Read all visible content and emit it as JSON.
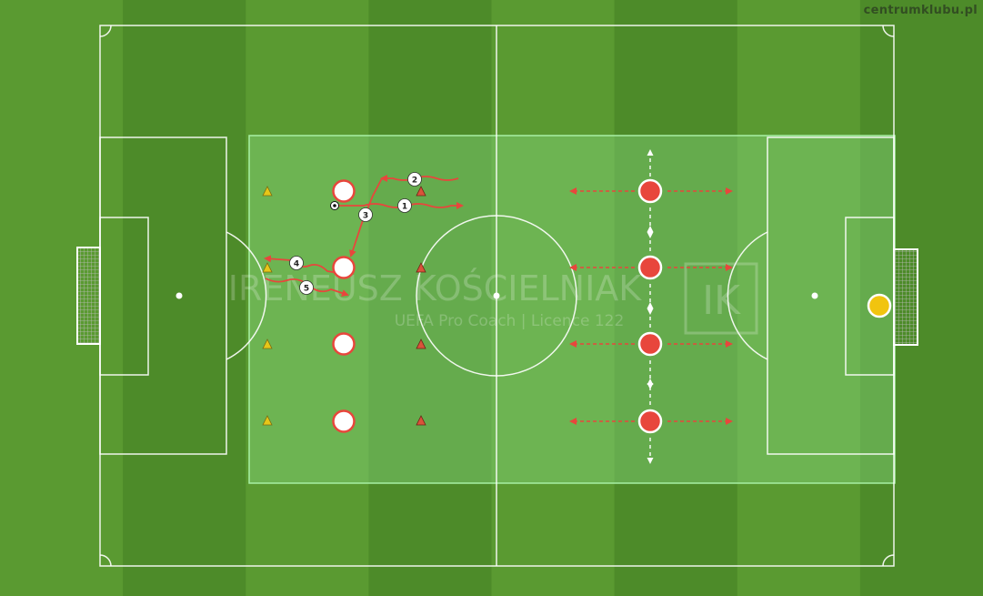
{
  "site": {
    "label": "centrumklubu.pl"
  },
  "watermark": {
    "name": "IRENEUSZ KOŚCIELNIAK",
    "subtitle": "UEFA Pro Coach   |   Licence 122",
    "logo": "IK"
  },
  "colors": {
    "grass_light": "#5a9a31",
    "grass_dark": "#4d8b29",
    "zone_fill": "#8fe08a",
    "zone_stroke": "#a8f0a4",
    "line": "#ffffff",
    "player_red": "#e8463c",
    "player_white": "#ffffff",
    "goalkeeper": "#f1c40f",
    "cone_yellow": "#e6c619",
    "cone_red": "#d9533a",
    "arrow": "#e8463c"
  },
  "labels": {
    "step_1": "1",
    "step_2": "2",
    "step_3": "3",
    "step_4": "4",
    "step_5": "5"
  },
  "icons": {
    "ball": "soccer-ball-icon",
    "cone": "cone-icon"
  }
}
